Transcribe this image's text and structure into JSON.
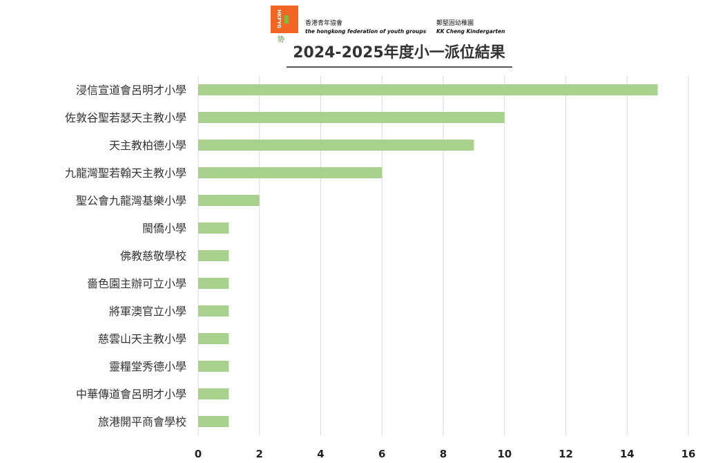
{
  "header": {
    "logo_text": "HKFYG",
    "logo_sign": "协",
    "org_zh": "香港青年協會",
    "org_en": "the hongkong federation of youth groups",
    "kg_zh": "鄭堅固幼稚園",
    "kg_en": "KK Cheng Kindergarten"
  },
  "colors": {
    "bar": "#a9d18e",
    "grid": "#d9d9d9",
    "axis": "#222222"
  },
  "chart_data": {
    "type": "bar",
    "orientation": "horizontal",
    "title": "2024-2025年度小一派位結果",
    "categories": [
      "浸信宣道會呂明才小學",
      "佐敦谷聖若瑟天主教小學",
      "天主教柏德小學",
      "九龍灣聖若翰天主教小學",
      "聖公會九龍灣基樂小學",
      "閩僑小學",
      "佛教慈敬學校",
      "嗇色園主辦可立小學",
      "將軍澳官立小學",
      "慈雲山天主教小學",
      "靈糧堂秀德小學",
      "中華傳道會呂明才小學",
      "旅港開平商會學校"
    ],
    "values": [
      15,
      10,
      9,
      6,
      2,
      1,
      1,
      1,
      1,
      1,
      1,
      1,
      1
    ],
    "xlim": [
      0,
      16
    ],
    "xticks": [
      "0",
      "2",
      "4",
      "6",
      "8",
      "10",
      "12",
      "14",
      "16"
    ],
    "grid": true
  }
}
